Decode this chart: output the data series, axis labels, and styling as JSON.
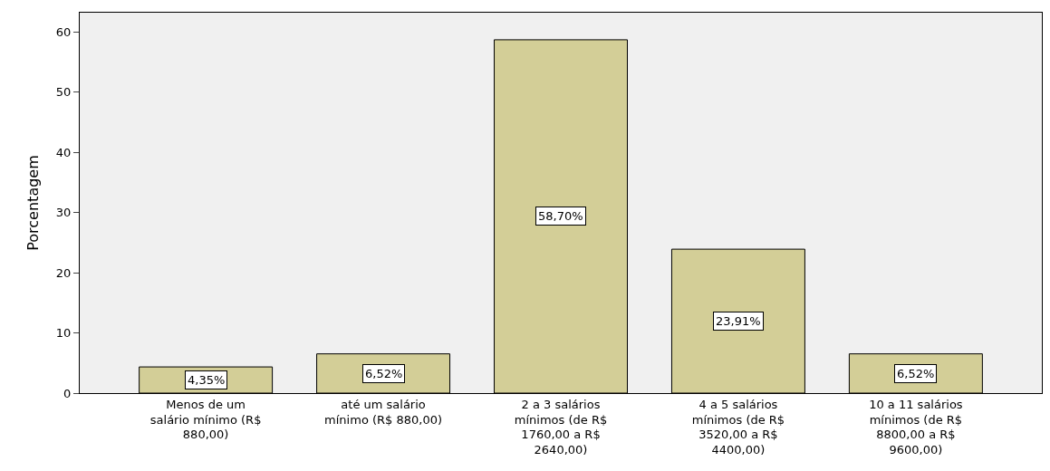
{
  "chart_data": {
    "type": "bar",
    "ylabel": "Porcentagem",
    "categories": [
      "Menos de um salário mínimo (R$ 880,00)",
      "até um salário mínimo (R$ 880,00)",
      "2 a 3 salários mínimos (de R$ 1760,00 a R$ 2640,00)",
      "4 a 5 salários mínimos (de R$ 3520,00 a R$ 4400,00)",
      "10 a 11 salários mínimos (de R$ 8800,00 a R$ 9600,00)"
    ],
    "values": [
      4.35,
      6.52,
      58.7,
      23.91,
      6.52
    ],
    "value_labels": [
      "4,35%",
      "6,52%",
      "58,70%",
      "23,91%",
      "6,52%"
    ],
    "color": "#d3ce97",
    "ylim": [
      0,
      63.2
    ],
    "yticks": [
      0,
      10,
      20,
      30,
      40,
      50,
      60
    ],
    "grid": false,
    "legend": false
  }
}
